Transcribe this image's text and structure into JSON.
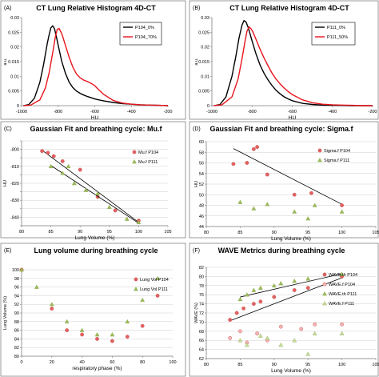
{
  "colors": {
    "black": "#000000",
    "red": "#e8141c",
    "marker_red": "#e36060",
    "marker_green": "#9bbb59",
    "grid": "#cfcfcf"
  },
  "chart_data": [
    {
      "panel": "(A)",
      "type": "line",
      "title": "CT Lung Relative Histogram 4D-CT",
      "xlabel": "HU",
      "ylabel": "a.u.",
      "xlim": [
        -1000,
        -200
      ],
      "ylim": [
        0,
        0.03
      ],
      "xticks": [
        -1000,
        -800,
        -600,
        -400,
        -200
      ],
      "yticks": [
        0,
        0.005,
        0.01,
        0.015,
        0.02,
        0.025,
        0.03
      ],
      "yticklabels": [
        "0",
        "0.005",
        "0.01",
        "0.015",
        "0.02",
        "0.025",
        "0.03"
      ],
      "grid": false,
      "legend": "top-right",
      "series": [
        {
          "name": "P104_0%",
          "color": "black",
          "x": [
            -990,
            -960,
            -930,
            -900,
            -880,
            -860,
            -850,
            -840,
            -830,
            -820,
            -810,
            -800,
            -780,
            -760,
            -740,
            -720,
            -700,
            -680,
            -660,
            -640,
            -620,
            -600,
            -580,
            -550,
            -500,
            -450,
            -400,
            -350,
            -300,
            -250,
            -200
          ],
          "y": [
            0,
            0.0004,
            0.0025,
            0.008,
            0.014,
            0.021,
            0.024,
            0.0265,
            0.0272,
            0.0262,
            0.0235,
            0.0205,
            0.015,
            0.011,
            0.008,
            0.0062,
            0.005,
            0.0042,
            0.0036,
            0.0031,
            0.0027,
            0.0023,
            0.002,
            0.0016,
            0.0011,
            0.0007,
            0.0005,
            0.0003,
            0.0002,
            0.0001,
            0
          ]
        },
        {
          "name": "P104_70%",
          "color": "red",
          "x": [
            -990,
            -950,
            -900,
            -870,
            -850,
            -830,
            -815,
            -805,
            -795,
            -780,
            -760,
            -740,
            -720,
            -700,
            -680,
            -660,
            -640,
            -620,
            -600,
            -580,
            -550,
            -500,
            -450,
            -400,
            -350,
            -300,
            -250,
            -200
          ],
          "y": [
            0,
            0.0002,
            0.002,
            0.006,
            0.011,
            0.018,
            0.0235,
            0.026,
            0.0263,
            0.0245,
            0.0205,
            0.0165,
            0.0132,
            0.0108,
            0.0095,
            0.0087,
            0.0082,
            0.0076,
            0.0068,
            0.0055,
            0.0038,
            0.0018,
            0.0009,
            0.0005,
            0.0003,
            0.0002,
            0.0001,
            0
          ]
        }
      ]
    },
    {
      "panel": "(B)",
      "type": "line",
      "title": "CT Lung Relative Histogram 4D-CT",
      "xlabel": "HU",
      "ylabel": "a.u.",
      "xlim": [
        -1000,
        -200
      ],
      "ylim": [
        0,
        0.03
      ],
      "xticks": [
        -1000,
        -800,
        -600,
        -400,
        -200
      ],
      "yticks": [
        0,
        0.005,
        0.01,
        0.015,
        0.02,
        0.025,
        0.03
      ],
      "yticklabels": [
        "0",
        "0.005",
        "0.01",
        "0.015",
        "0.02",
        "0.025",
        "0.03"
      ],
      "grid": false,
      "legend": "top-right",
      "series": [
        {
          "name": "P111_0%",
          "color": "black",
          "x": [
            -990,
            -960,
            -930,
            -900,
            -880,
            -865,
            -850,
            -840,
            -830,
            -820,
            -810,
            -800,
            -780,
            -760,
            -740,
            -720,
            -700,
            -680,
            -660,
            -640,
            -620,
            -600,
            -550,
            -500,
            -450,
            -400,
            -350,
            -300,
            -250,
            -200
          ],
          "y": [
            0,
            0.0004,
            0.003,
            0.01,
            0.017,
            0.023,
            0.0275,
            0.029,
            0.0285,
            0.0268,
            0.0245,
            0.022,
            0.0175,
            0.0138,
            0.011,
            0.0087,
            0.0068,
            0.0052,
            0.004,
            0.003,
            0.0023,
            0.0017,
            0.0008,
            0.0004,
            0.0002,
            0.0001,
            5e-05,
            0,
            0,
            0
          ]
        },
        {
          "name": "P111_50%",
          "color": "red",
          "x": [
            -990,
            -950,
            -900,
            -870,
            -850,
            -835,
            -825,
            -815,
            -805,
            -795,
            -780,
            -760,
            -740,
            -720,
            -700,
            -680,
            -660,
            -640,
            -620,
            -600,
            -550,
            -500,
            -450,
            -400,
            -350,
            -300,
            -250,
            -200
          ],
          "y": [
            0,
            0.0003,
            0.003,
            0.009,
            0.016,
            0.022,
            0.0255,
            0.0268,
            0.0262,
            0.025,
            0.0225,
            0.0192,
            0.0162,
            0.0135,
            0.011,
            0.009,
            0.0074,
            0.006,
            0.0048,
            0.0038,
            0.002,
            0.001,
            0.0005,
            0.0003,
            0.0002,
            0.0001,
            0,
            0
          ]
        }
      ]
    },
    {
      "panel": "(C)",
      "type": "scatter",
      "title": "Gaussian Fit and breathing cycle: Mu.f",
      "xlabel": "Lung Volume (%)",
      "ylabel": "HU",
      "xlim": [
        80,
        105
      ],
      "ylim": [
        -845,
        -795
      ],
      "xticks": [
        80,
        85,
        90,
        95,
        100,
        105
      ],
      "yticks": [
        -845,
        -840,
        -835,
        -830,
        -825,
        -820,
        -815,
        -810,
        -805,
        -800,
        -795
      ],
      "yticklabels": [
        "",
        "-840",
        "",
        "-830",
        "",
        "-820",
        "",
        "-810",
        "",
        "-800",
        ""
      ],
      "grid": true,
      "legend": "right",
      "series": [
        {
          "name": "Mu.f P104",
          "marker": "circle",
          "x": [
            83.5,
            84.5,
            85.5,
            87,
            90,
            93,
            96,
            100
          ],
          "y": [
            -801,
            -802,
            -804,
            -807,
            -812,
            -828,
            -836,
            -842
          ],
          "trend": [
            [
              83.5,
              -800.5
            ],
            [
              100,
              -843
            ]
          ]
        },
        {
          "name": "Mu.f P111",
          "marker": "triangle",
          "x": [
            85,
            87,
            88,
            89,
            91,
            93,
            95,
            98,
            100
          ],
          "y": [
            -810,
            -814,
            -810,
            -820,
            -824,
            -826,
            -834,
            -841,
            -843
          ],
          "trend": [
            [
              85,
              -809.5
            ],
            [
              100,
              -843.5
            ]
          ]
        }
      ]
    },
    {
      "panel": "(D)",
      "type": "scatter",
      "title": "Gaussian Fit and breathing cycle: Sigma.f",
      "xlabel": "Lung Volume (%)",
      "ylabel": "HU",
      "xlim": [
        80,
        105
      ],
      "ylim": [
        44,
        60
      ],
      "xticks": [
        80,
        85,
        90,
        95,
        100,
        105
      ],
      "yticks": [
        44,
        46,
        48,
        50,
        52,
        54,
        56,
        58,
        60
      ],
      "yticklabels": [
        "44",
        "46",
        "48",
        "50",
        "52",
        "54",
        "56",
        "58",
        "60"
      ],
      "grid": true,
      "legend": "top-right",
      "series": [
        {
          "name": "Sigma.f P104",
          "marker": "circle",
          "x": [
            84,
            86,
            87,
            87.5,
            89,
            93,
            95.5,
            100
          ],
          "y": [
            55.8,
            56,
            58.6,
            59,
            53.8,
            50,
            50.3,
            48
          ],
          "trend": [
            [
              84,
              58.7
            ],
            [
              100,
              48.2
            ]
          ]
        },
        {
          "name": "Sigma.f P111",
          "marker": "triangle",
          "x": [
            85,
            87,
            89,
            93,
            95,
            96,
            100
          ],
          "y": [
            48.6,
            47.4,
            48.2,
            46.8,
            45.5,
            48,
            46.8
          ],
          "trend": null
        }
      ]
    },
    {
      "panel": "(E)",
      "type": "scatter",
      "title": "Lung volume during breathing cycle",
      "xlabel": "respiratory phase (%)",
      "ylabel": "Lung Volume (%)",
      "xlim": [
        0,
        100
      ],
      "ylim": [
        80,
        100
      ],
      "xticks": [
        0,
        20,
        40,
        60,
        80,
        100
      ],
      "yticks": [
        80,
        82,
        84,
        86,
        88,
        90,
        92,
        94,
        96,
        98,
        100
      ],
      "yticklabels": [
        "80",
        "82",
        "84",
        "86",
        "88",
        "90",
        "92",
        "94",
        "96",
        "98",
        "100"
      ],
      "grid": true,
      "legend": "right",
      "series": [
        {
          "name": "Lung Vol P104",
          "marker": "circle",
          "x": [
            0,
            20,
            30,
            40,
            50,
            60,
            70,
            80,
            90
          ],
          "y": [
            100,
            91,
            86,
            85,
            84,
            83.5,
            84.5,
            87,
            94
          ]
        },
        {
          "name": "Lung Vol P111",
          "marker": "triangle",
          "x": [
            0,
            10,
            20,
            30,
            40,
            50,
            60,
            70,
            80,
            90
          ],
          "y": [
            100,
            96,
            92,
            88,
            86,
            85,
            85,
            88,
            93,
            98
          ]
        }
      ]
    },
    {
      "panel": "(F)",
      "type": "scatter",
      "title": "WAVE Metrics during breathing cycle",
      "xlabel": "Lung Volume (%)",
      "ylabel": "WAVE (%)",
      "xlim": [
        80,
        105
      ],
      "ylim": [
        62,
        82
      ],
      "xticks": [
        80,
        85,
        90,
        95,
        100,
        105
      ],
      "yticks": [
        62,
        64,
        66,
        68,
        70,
        72,
        74,
        76,
        78,
        80,
        82
      ],
      "yticklabels": [
        "62",
        "64",
        "66",
        "68",
        "70",
        "72",
        "74",
        "76",
        "78",
        "80",
        "82"
      ],
      "grid": true,
      "legend": "top-right",
      "series": [
        {
          "name": "WAVE.th P104",
          "marker": "circle",
          "fill": "red",
          "x": [
            83.5,
            84.5,
            85.5,
            87,
            88,
            90,
            93,
            95,
            100
          ],
          "y": [
            70.5,
            72,
            73,
            74,
            74.5,
            75.5,
            77,
            77.5,
            80
          ],
          "trend": [
            [
              83.5,
              70.3
            ],
            [
              100,
              79.7
            ]
          ]
        },
        {
          "name": "WAVE.f P104",
          "marker": "circle",
          "fill": "light",
          "x": [
            83.5,
            85,
            86,
            87.5,
            89,
            91,
            94,
            96,
            100
          ],
          "y": [
            66.5,
            68,
            65.5,
            67.5,
            66,
            69,
            68.5,
            69.5,
            69.5
          ],
          "trend": null
        },
        {
          "name": "WAVE.th P111",
          "marker": "triangle",
          "fill": "green",
          "x": [
            85,
            86,
            87,
            88,
            90,
            91,
            93,
            95,
            100
          ],
          "y": [
            75,
            76,
            77,
            77.5,
            78,
            78.5,
            79,
            79.5,
            80.5
          ],
          "trend": [
            [
              85,
              75.5
            ],
            [
              100,
              80.6
            ]
          ]
        },
        {
          "name": "WAVE.f P111",
          "marker": "triangle",
          "fill": "light",
          "x": [
            85,
            86,
            88,
            89,
            91,
            93,
            95,
            96,
            100
          ],
          "y": [
            66,
            65,
            67,
            66.5,
            65,
            66,
            63,
            67.5,
            67.5
          ],
          "trend": null
        }
      ]
    }
  ]
}
